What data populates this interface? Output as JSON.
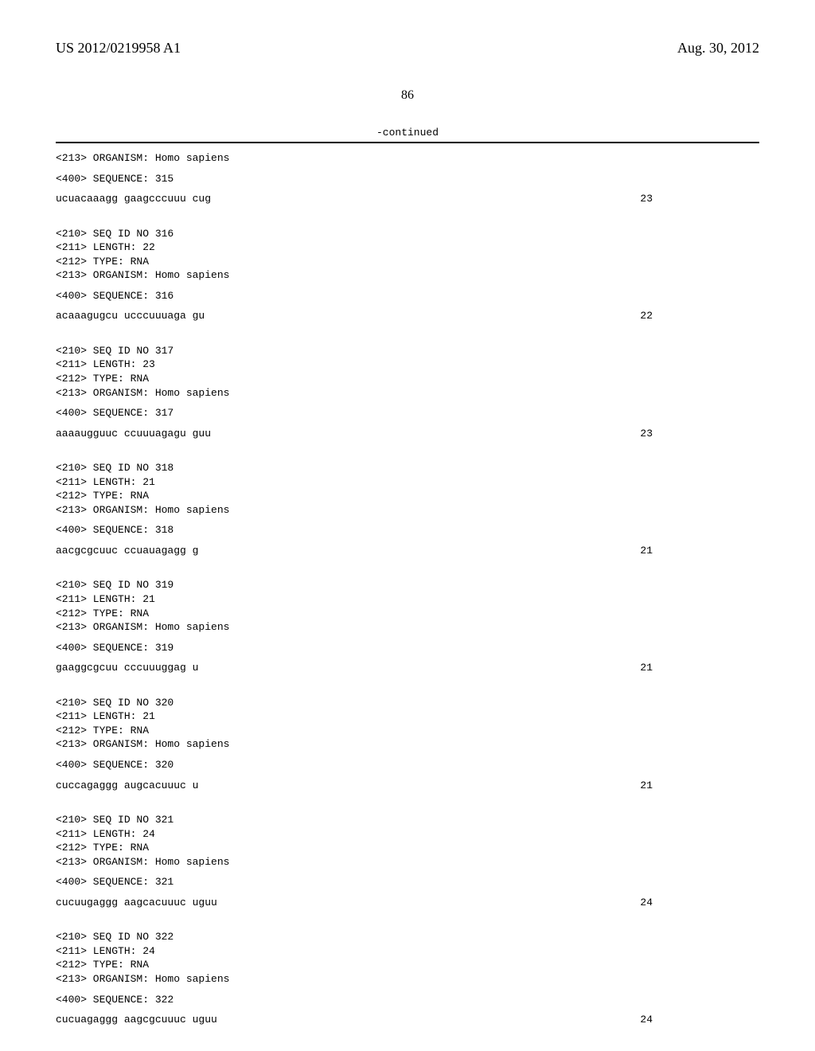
{
  "header": {
    "pub_number": "US 2012/0219958 A1",
    "pub_date": "Aug. 30, 2012"
  },
  "page_number": "86",
  "continued_label": "-continued",
  "entries": [
    {
      "pre_lines": [
        "<213> ORGANISM: Homo sapiens"
      ],
      "seq_label": "<400> SEQUENCE: 315",
      "sequence": "ucuacaaagg gaagcccuuu cug",
      "length": "23"
    },
    {
      "pre_lines": [
        "<210> SEQ ID NO 316",
        "<211> LENGTH: 22",
        "<212> TYPE: RNA",
        "<213> ORGANISM: Homo sapiens"
      ],
      "seq_label": "<400> SEQUENCE: 316",
      "sequence": "acaaagugcu ucccuuuaga gu",
      "length": "22"
    },
    {
      "pre_lines": [
        "<210> SEQ ID NO 317",
        "<211> LENGTH: 23",
        "<212> TYPE: RNA",
        "<213> ORGANISM: Homo sapiens"
      ],
      "seq_label": "<400> SEQUENCE: 317",
      "sequence": "aaaaugguuc ccuuuagagu guu",
      "length": "23"
    },
    {
      "pre_lines": [
        "<210> SEQ ID NO 318",
        "<211> LENGTH: 21",
        "<212> TYPE: RNA",
        "<213> ORGANISM: Homo sapiens"
      ],
      "seq_label": "<400> SEQUENCE: 318",
      "sequence": "aacgcgcuuc ccuauagagg g",
      "length": "21"
    },
    {
      "pre_lines": [
        "<210> SEQ ID NO 319",
        "<211> LENGTH: 21",
        "<212> TYPE: RNA",
        "<213> ORGANISM: Homo sapiens"
      ],
      "seq_label": "<400> SEQUENCE: 319",
      "sequence": "gaaggcgcuu cccuuuggag u",
      "length": "21"
    },
    {
      "pre_lines": [
        "<210> SEQ ID NO 320",
        "<211> LENGTH: 21",
        "<212> TYPE: RNA",
        "<213> ORGANISM: Homo sapiens"
      ],
      "seq_label": "<400> SEQUENCE: 320",
      "sequence": "cuccagaggg augcacuuuc u",
      "length": "21"
    },
    {
      "pre_lines": [
        "<210> SEQ ID NO 321",
        "<211> LENGTH: 24",
        "<212> TYPE: RNA",
        "<213> ORGANISM: Homo sapiens"
      ],
      "seq_label": "<400> SEQUENCE: 321",
      "sequence": "cucuugaggg aagcacuuuc uguu",
      "length": "24"
    },
    {
      "pre_lines": [
        "<210> SEQ ID NO 322",
        "<211> LENGTH: 24",
        "<212> TYPE: RNA",
        "<213> ORGANISM: Homo sapiens"
      ],
      "seq_label": "<400> SEQUENCE: 322",
      "sequence": "cucuagaggg aagcgcuuuc uguu",
      "length": "24"
    }
  ]
}
